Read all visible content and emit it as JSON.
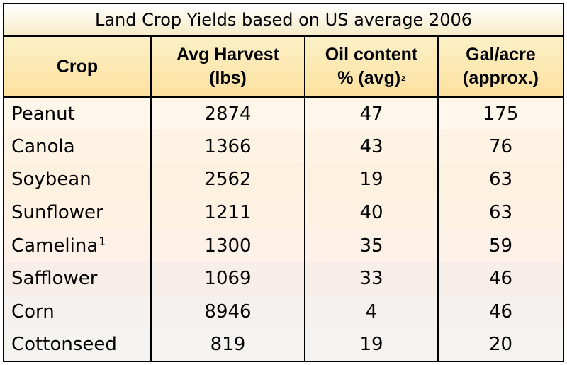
{
  "chart_data": {
    "type": "table",
    "title": "Land Crop Yields based on US average 2006",
    "columns": [
      {
        "lines": [
          "Crop"
        ],
        "sup": ""
      },
      {
        "lines": [
          "Avg Harvest",
          "(lbs)"
        ],
        "sup": ""
      },
      {
        "lines": [
          "Oil content",
          "% (avg)"
        ],
        "sup": "2"
      },
      {
        "lines": [
          "Gal/acre",
          "(approx.)"
        ],
        "sup": ""
      }
    ],
    "rows": [
      {
        "crop": "Peanut",
        "sup": "",
        "harvest_lbs": 2874,
        "oil_pct": 47,
        "gal_acre": 175
      },
      {
        "crop": "Canola",
        "sup": "",
        "harvest_lbs": 1366,
        "oil_pct": 43,
        "gal_acre": 76
      },
      {
        "crop": "Soybean",
        "sup": "",
        "harvest_lbs": 2562,
        "oil_pct": 19,
        "gal_acre": 63
      },
      {
        "crop": "Sunflower",
        "sup": "",
        "harvest_lbs": 1211,
        "oil_pct": 40,
        "gal_acre": 63
      },
      {
        "crop": "Camelina",
        "sup": "1",
        "harvest_lbs": 1300,
        "oil_pct": 35,
        "gal_acre": 59
      },
      {
        "crop": "Safflower",
        "sup": "",
        "harvest_lbs": 1069,
        "oil_pct": 33,
        "gal_acre": 46
      },
      {
        "crop": "Corn",
        "sup": "",
        "harvest_lbs": 8946,
        "oil_pct": 4,
        "gal_acre": 46
      },
      {
        "crop": "Cottonseed",
        "sup": "",
        "harvest_lbs": 819,
        "oil_pct": 19,
        "gal_acre": 20
      }
    ]
  }
}
